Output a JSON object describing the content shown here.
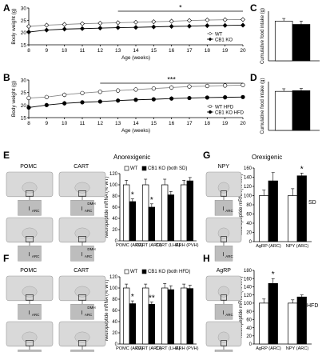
{
  "panels": {
    "A": "A",
    "B": "B",
    "C": "C",
    "D": "D",
    "E": "E",
    "F": "F",
    "G": "G",
    "H": "H"
  },
  "colors": {
    "wt": "#ffffff",
    "ko": "#000000",
    "wt_line": "#888888",
    "ko_line": "#000000",
    "section": "#d9d9d9",
    "section_inset": "#bdbdbd"
  },
  "histology": {
    "E": {
      "titles": [
        "POMC",
        "CART"
      ],
      "inset_label": "ARC",
      "dmh_label": "DMH"
    },
    "F": {
      "titles": [
        "POMC",
        "CART"
      ],
      "inset_label": "ARC",
      "dmh_label": "DMH"
    },
    "G": {
      "titles": [
        "NPY"
      ],
      "inset_label": "ARC"
    },
    "H": {
      "titles": [
        "AgRP"
      ],
      "inset_label": "ARC"
    }
  },
  "labels": {
    "anorexigenic": "Anorexigenic",
    "orexigenic": "Orexigenic",
    "sd": "SD",
    "hfd": "HFD"
  },
  "chart_data": [
    {
      "panel": "A",
      "type": "line",
      "xlabel": "Age (weeks)",
      "ylabel": "Body weight (g)",
      "x": [
        8,
        9,
        10,
        11,
        12,
        13,
        14,
        15,
        16,
        17,
        18,
        19,
        20
      ],
      "xlim": [
        8,
        20
      ],
      "ylim": [
        15,
        30
      ],
      "yticks": [
        15,
        20,
        25,
        30
      ],
      "series": [
        {
          "name": "WT",
          "marker": "open-diamond",
          "values": [
            22.5,
            23.0,
            23.3,
            23.6,
            23.8,
            24.0,
            24.2,
            24.4,
            24.6,
            24.9,
            25.1,
            25.2,
            25.3
          ]
        },
        {
          "name": "CB1 KO",
          "marker": "filled-diamond",
          "values": [
            20.2,
            21.0,
            21.4,
            21.6,
            21.8,
            22.0,
            22.1,
            22.3,
            22.5,
            22.6,
            22.8,
            22.9,
            23.0
          ]
        }
      ],
      "legend": "bottom-right",
      "significance": "*"
    },
    {
      "panel": "B",
      "type": "line",
      "xlabel": "Age (weeks)",
      "ylabel": "Body weight (g)",
      "x": [
        8,
        9,
        10,
        11,
        12,
        13,
        14,
        15,
        16,
        17,
        18,
        19,
        20
      ],
      "xlim": [
        8,
        20
      ],
      "ylim": [
        15,
        30
      ],
      "yticks": [
        15,
        20,
        25,
        30
      ],
      "series": [
        {
          "name": "WT HFD",
          "marker": "open-circle",
          "values": [
            22.8,
            23.2,
            24.1,
            24.8,
            25.3,
            25.8,
            26.2,
            26.6,
            27.0,
            27.4,
            27.6,
            27.8,
            28.0
          ]
        },
        {
          "name": "CB1 KO HFD",
          "marker": "filled-circle",
          "values": [
            19.0,
            20.0,
            20.7,
            21.1,
            21.4,
            21.8,
            22.1,
            22.3,
            22.6,
            22.8,
            23.0,
            23.1,
            23.2
          ]
        }
      ],
      "legend": "bottom-right",
      "significance": "***"
    },
    {
      "panel": "C",
      "type": "bar",
      "ylabel": "Cumulative food intake (g)",
      "categories": [
        "WT",
        "CB1 KO"
      ],
      "values": [
        1.2,
        1.1
      ],
      "errors": [
        0.08,
        0.1
      ],
      "ylim": [
        0,
        1.5
      ]
    },
    {
      "panel": "D",
      "type": "bar",
      "ylabel": "Cumulative food intake (g)",
      "categories": [
        "WT",
        "CB1 KO"
      ],
      "values": [
        1.2,
        1.22
      ],
      "errors": [
        0.08,
        0.07
      ],
      "ylim": [
        0,
        1.5
      ]
    },
    {
      "panel": "E",
      "type": "bar",
      "ylabel": "Neuropeptide mRNA (% WT)",
      "categories": [
        "POMC (ARC)",
        "CART (ARC)",
        "CART (LHA)",
        "CRH (PVH)"
      ],
      "series": [
        {
          "name": "WT",
          "values": [
            100,
            100,
            100,
            100
          ],
          "errors": [
            8,
            10,
            10,
            8
          ]
        },
        {
          "name": "CB1 KO (both SD)",
          "values": [
            70,
            60,
            82,
            107
          ],
          "errors": [
            5,
            6,
            6,
            6
          ]
        }
      ],
      "ylim": [
        0,
        120
      ],
      "yticks": [
        0,
        20,
        40,
        60,
        80,
        100,
        120
      ],
      "significance": [
        "*",
        "*",
        "",
        ""
      ]
    },
    {
      "panel": "G",
      "type": "bar",
      "ylabel": "Neuropeptide mRNA (% WT)",
      "categories": [
        "AgRP (ARC)",
        "NPY (ARC)"
      ],
      "series": [
        {
          "name": "WT",
          "values": [
            100,
            100
          ],
          "errors": [
            12,
            15
          ]
        },
        {
          "name": "CB1 KO",
          "values": [
            132,
            143
          ],
          "errors": [
            18,
            6
          ]
        }
      ],
      "ylim": [
        0,
        160
      ],
      "yticks": [
        0,
        20,
        40,
        60,
        80,
        100,
        120,
        140,
        160
      ],
      "significance": [
        "",
        "*"
      ]
    },
    {
      "panel": "F",
      "type": "bar",
      "ylabel": "Neuropeptide mRNA (% WT)",
      "categories": [
        "POMC (ARC)",
        "CART (ARC)",
        "CART (LHA)",
        "CRH (PVH)"
      ],
      "series": [
        {
          "name": "WT",
          "values": [
            100,
            100,
            100,
            100
          ],
          "errors": [
            7,
            7,
            8,
            7
          ]
        },
        {
          "name": "CB1 KO (both HFD)",
          "values": [
            72,
            71,
            97,
            99
          ],
          "errors": [
            5,
            4,
            7,
            6
          ]
        }
      ],
      "ylim": [
        0,
        120
      ],
      "yticks": [
        0,
        20,
        40,
        60,
        80,
        100,
        120
      ],
      "significance": [
        "*",
        "**",
        "",
        ""
      ]
    },
    {
      "panel": "H",
      "type": "bar",
      "ylabel": "Neuropeptide mRNA (% WT)",
      "categories": [
        "AgRP (ARC)",
        "NPY (ARC)"
      ],
      "series": [
        {
          "name": "WT",
          "values": [
            100,
            100
          ],
          "errors": [
            10,
            8
          ]
        },
        {
          "name": "CB1 KO",
          "values": [
            148,
            115
          ],
          "errors": [
            12,
            5
          ]
        }
      ],
      "ylim": [
        0,
        180
      ],
      "yticks": [
        0,
        20,
        40,
        60,
        80,
        100,
        120,
        140,
        160,
        180
      ],
      "significance": [
        "*",
        ""
      ]
    }
  ]
}
